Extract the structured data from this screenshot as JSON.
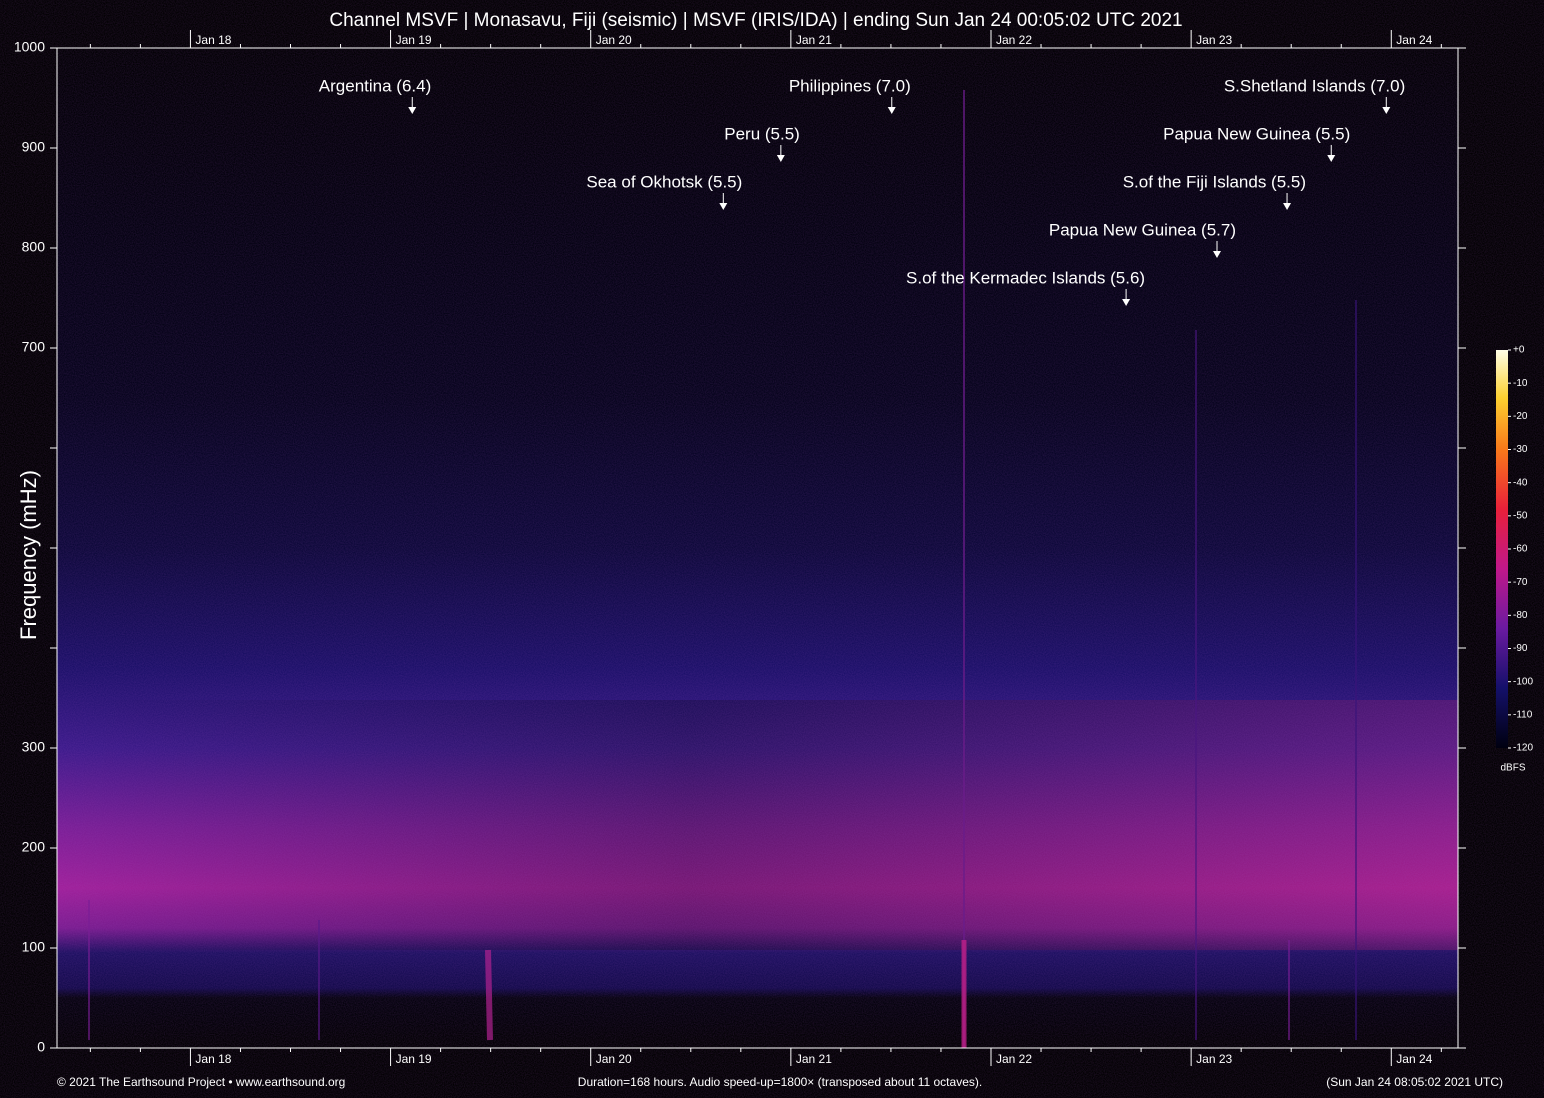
{
  "chart_data": {
    "type": "spectrogram",
    "title": "Channel MSVF | Monasavu, Fiji (seismic) | MSVF (IRIS/IDA) | ending Sun Jan 24 00:05:02 UTC 2021",
    "y_label": "Frequency (mHz)",
    "xlim": [
      0,
      168
    ],
    "xticks": [
      {
        "value": 16,
        "label": "Jan 18"
      },
      {
        "value": 40,
        "label": "Jan 19"
      },
      {
        "value": 64,
        "label": "Jan 20"
      },
      {
        "value": 88,
        "label": "Jan 21"
      },
      {
        "value": 112,
        "label": "Jan 22"
      },
      {
        "value": 136,
        "label": "Jan 23"
      },
      {
        "value": 160,
        "label": "Jan 24"
      }
    ],
    "xminor_ticks": [
      4,
      10,
      22,
      28,
      34,
      46,
      52,
      58,
      70,
      76,
      82,
      94,
      100,
      106,
      118,
      124,
      130,
      142,
      148,
      154,
      166
    ],
    "ylim": [
      0,
      1000
    ],
    "yticks": [
      0,
      100,
      200,
      300,
      {
        "value": 400,
        "label": null
      },
      {
        "value": 500,
        "label": null
      },
      {
        "value": 600,
        "label": null
      },
      700,
      800,
      900,
      1000
    ],
    "annotations": [
      {
        "text": "Argentina (6.4)",
        "x": 42.6,
        "y": 934
      },
      {
        "text": "Philippines (7.0)",
        "x": 100.1,
        "y": 934
      },
      {
        "text": "S.Shetland Islands (7.0)",
        "x": 159.4,
        "y": 934
      },
      {
        "text": "Peru (5.5)",
        "x": 86.8,
        "y": 886
      },
      {
        "text": "Papua New Guinea (5.5)",
        "x": 152.8,
        "y": 886
      },
      {
        "text": "Sea of Okhotsk (5.5)",
        "x": 79.9,
        "y": 838
      },
      {
        "text": "S.of the Fiji Islands (5.5)",
        "x": 147.5,
        "y": 838
      },
      {
        "text": "Papua New Guinea (5.7)",
        "x": 139.1,
        "y": 790
      },
      {
        "text": "S.of the Kermadec Islands (5.6)",
        "x": 128.2,
        "y": 742
      }
    ],
    "colorbar": {
      "unit": "dBFS",
      "lim": [
        -120,
        0
      ],
      "ticks": [
        {
          "value": 0,
          "label": "+0"
        },
        -10,
        -20,
        -30,
        -40,
        -50,
        -60,
        -70,
        -80,
        -90,
        -100,
        -110,
        -120
      ]
    },
    "footer_left": "© 2021 The Earthsound Project • www.earthsound.org",
    "footer_center": "Duration=168 hours. Audio speed-up=1800× (transposed about 11 octaves).",
    "footer_right": "(Sun Jan 24 08:05:02 2021 UTC)"
  }
}
